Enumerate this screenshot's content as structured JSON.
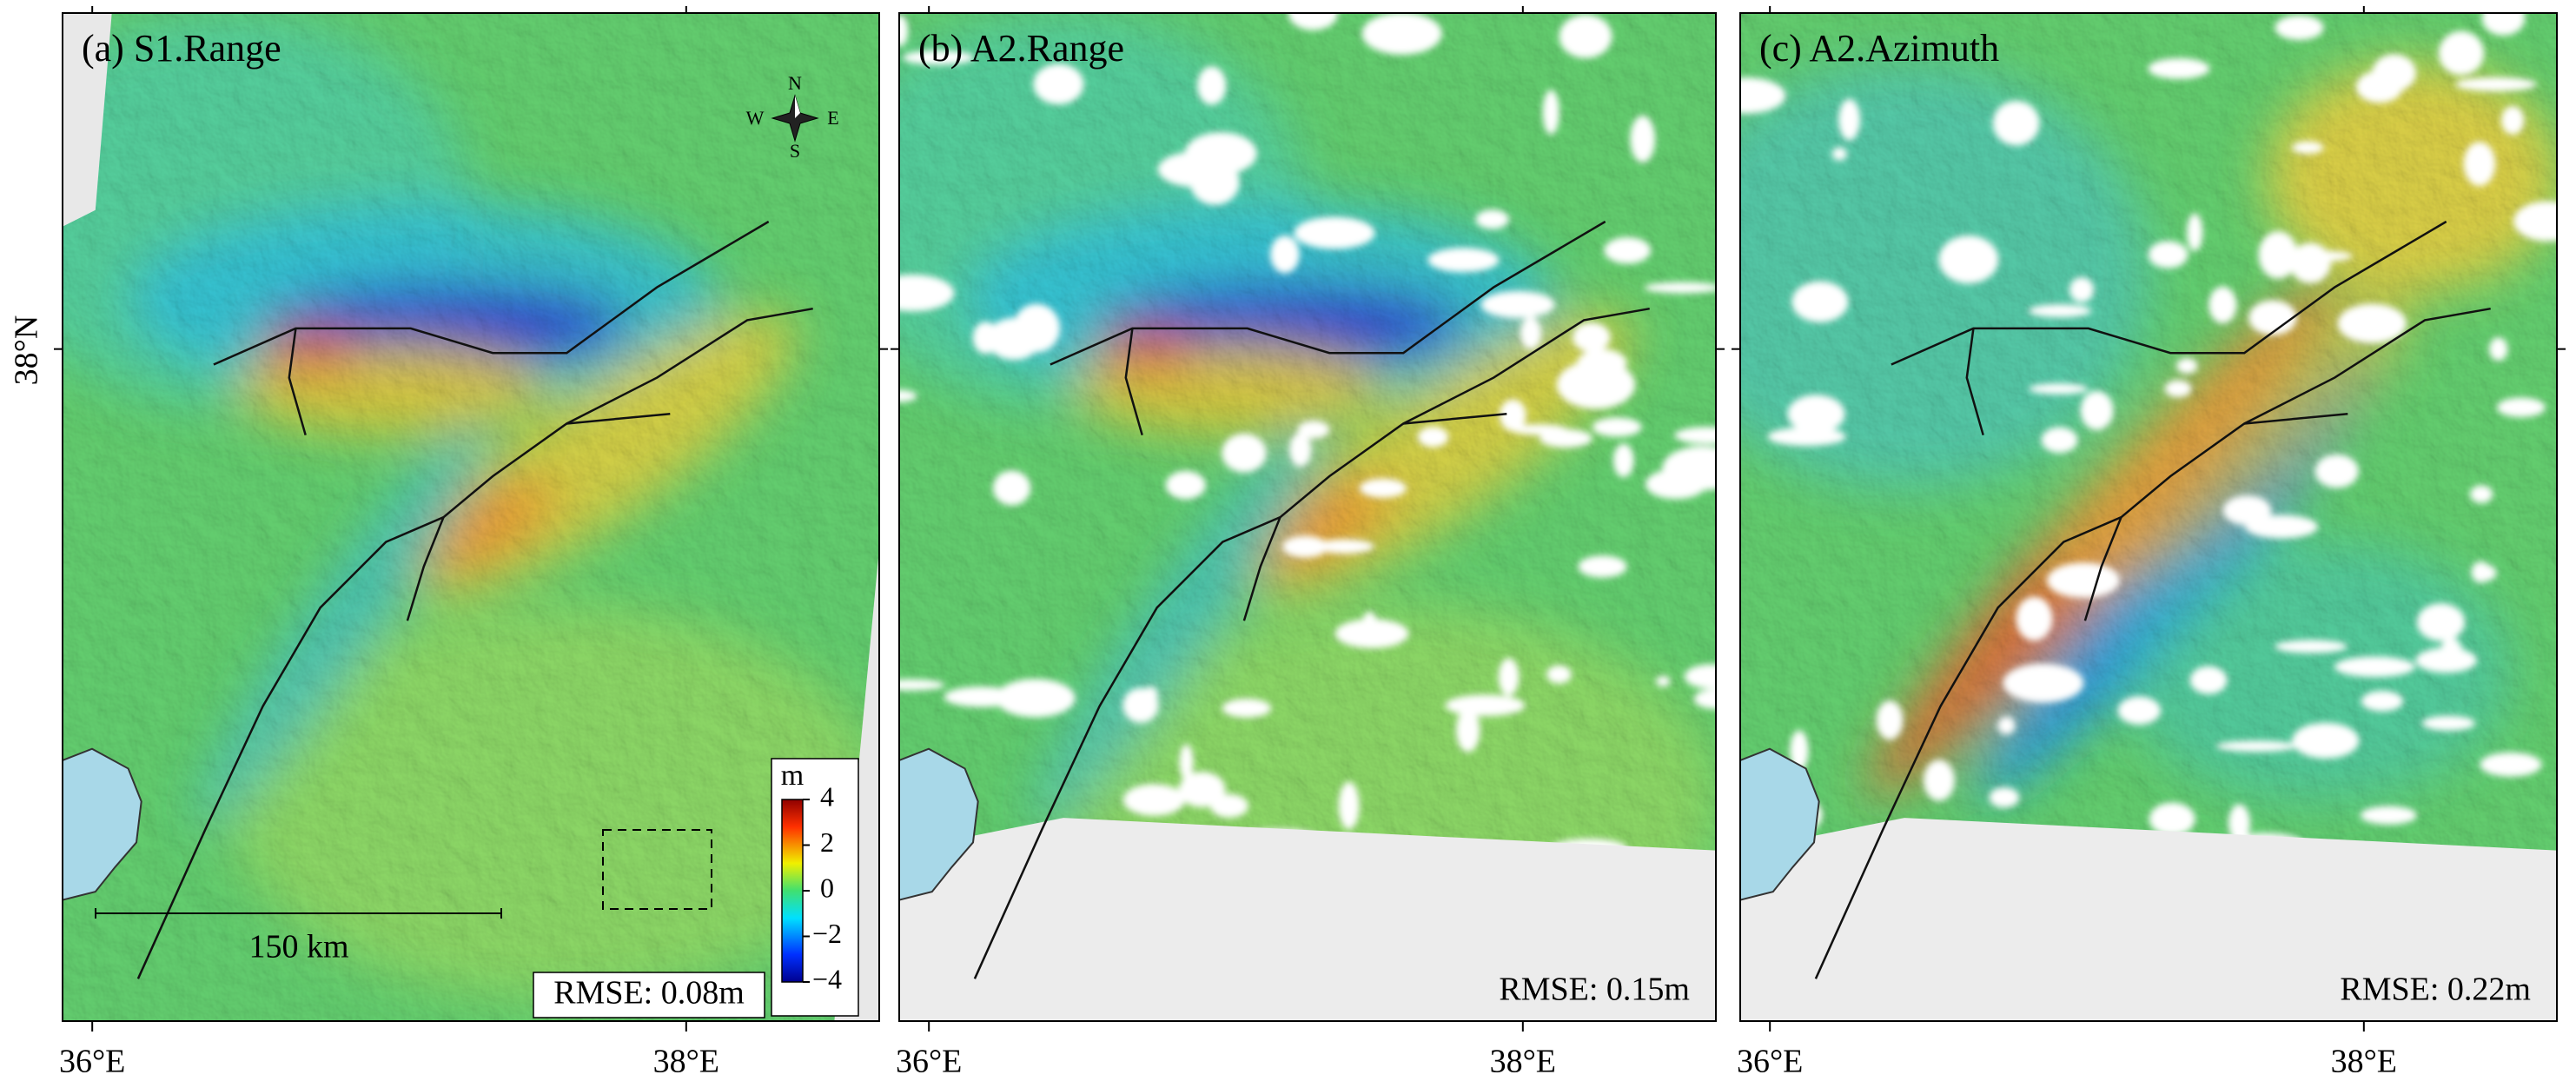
{
  "panels": [
    {
      "title": "(a) S1.Range",
      "rmse": "RMSE: 0.08m"
    },
    {
      "title": "(b) A2.Range",
      "rmse": "RMSE: 0.15m"
    },
    {
      "title": "(c) A2.Azimuth",
      "rmse": "RMSE: 0.22m"
    }
  ],
  "axes": {
    "xlim": [
      35.9,
      38.65
    ],
    "ylim": [
      36.22,
      38.89
    ],
    "x_ticks": [
      {
        "value": 36,
        "label": "36°E"
      },
      {
        "value": 38,
        "label": "38°E"
      }
    ],
    "y_ticks": [
      {
        "value": 38,
        "label": "38°N"
      }
    ]
  },
  "colorbar": {
    "unit": "m",
    "lim": [
      -4,
      4
    ],
    "ticks": [
      4,
      2,
      0,
      {
        "value": -2,
        "label": "−2"
      },
      {
        "value": -4,
        "label": "−4"
      }
    ]
  },
  "scale_bar": {
    "label": "150 km"
  },
  "compass": {
    "n": "N",
    "s": "S",
    "e": "E",
    "w": "W"
  }
}
